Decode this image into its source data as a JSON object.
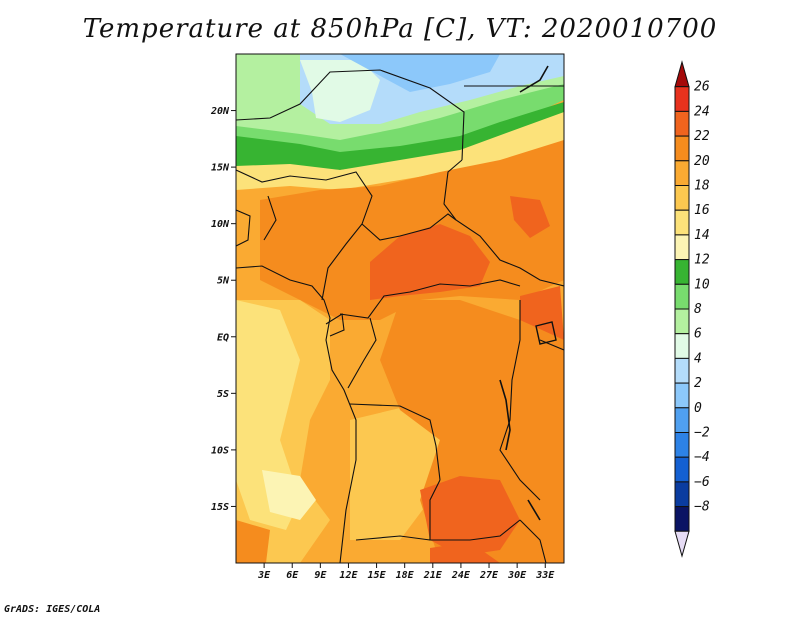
{
  "title": "Temperature at 850hPa [C], VT: 2020010700",
  "credit": "GrADS: IGES/COLA",
  "map": {
    "lon_range": [
      0,
      35
    ],
    "lat_range": [
      -20,
      25
    ],
    "lat_ticks": [
      {
        "value": 20,
        "label": "20N"
      },
      {
        "value": 15,
        "label": "15N"
      },
      {
        "value": 10,
        "label": "10N"
      },
      {
        "value": 5,
        "label": "5N"
      },
      {
        "value": 0,
        "label": "EQ"
      },
      {
        "value": -5,
        "label": "5S"
      },
      {
        "value": -10,
        "label": "10S"
      },
      {
        "value": -15,
        "label": "15S"
      }
    ],
    "lon_ticks": [
      {
        "value": 3,
        "label": "3E"
      },
      {
        "value": 6,
        "label": "6E"
      },
      {
        "value": 9,
        "label": "9E"
      },
      {
        "value": 12,
        "label": "12E"
      },
      {
        "value": 15,
        "label": "15E"
      },
      {
        "value": 18,
        "label": "18E"
      },
      {
        "value": 21,
        "label": "21E"
      },
      {
        "value": 24,
        "label": "24E"
      },
      {
        "value": 27,
        "label": "27E"
      },
      {
        "value": 30,
        "label": "30E"
      },
      {
        "value": 33,
        "label": "33E"
      }
    ]
  },
  "colorbar": {
    "levels": [
      "26",
      "24",
      "22",
      "20",
      "18",
      "16",
      "14",
      "12",
      "10",
      "8",
      "6",
      "4",
      "2",
      "0",
      "−2",
      "−4",
      "−6",
      "−8"
    ],
    "colors": [
      "#a50a0a",
      "#e8321e",
      "#f0641e",
      "#f58c1e",
      "#faaa32",
      "#fcc850",
      "#fce27a",
      "#fcf4b4",
      "#37b432",
      "#78dc6e",
      "#b4f0a0",
      "#e1fae6",
      "#b4dcfa",
      "#8cc8fa",
      "#50a0f0",
      "#2d82e6",
      "#1460d2",
      "#0a3ca0",
      "#0a1464",
      "#e6dcf5"
    ]
  }
}
